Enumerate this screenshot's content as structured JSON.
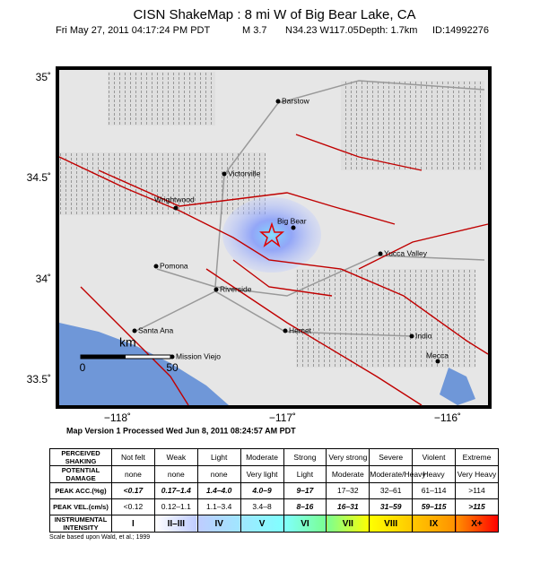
{
  "header": {
    "title": "CISN ShakeMap : 8 mi W of Big Bear Lake, CA",
    "details": [
      "Fri May 27, 2011 04:17:24 PM PDT",
      "M 3.7",
      "N34.23 W117.05",
      "Depth: 1.7km",
      "ID:14992276"
    ]
  },
  "map": {
    "lat_labels": [
      "35˚",
      "34.5˚",
      "34˚",
      "33.5˚"
    ],
    "lon_labels": [
      "−118˚",
      "−117˚",
      "−116˚"
    ],
    "places": [
      "Barstow",
      "Victorville",
      "Wrightwood",
      "Big Bear",
      "Yucca Valley",
      "Pomona",
      "Riverside",
      "Santa Ana",
      "Hemet",
      "Indio",
      "Mission Viejo",
      "Mecca"
    ],
    "scale": {
      "unit": "km",
      "start": "0",
      "end": "50"
    }
  },
  "version": "Map Version 1 Processed Wed Jun  8, 2011 08:24:57 AM PDT",
  "table": {
    "rows": [
      [
        "PERCEIVED SHAKING",
        "Not felt",
        "Weak",
        "Light",
        "Moderate",
        "Strong",
        "Very strong",
        "Severe",
        "Violent",
        "Extreme"
      ],
      [
        "POTENTIAL DAMAGE",
        "none",
        "none",
        "none",
        "Very light",
        "Light",
        "Moderate",
        "Moderate/Heavy",
        "Heavy",
        "Very Heavy"
      ],
      [
        "PEAK ACC.(%g)",
        "<0.17",
        "0.17–1.4",
        "1.4–4.0",
        "4.0–9",
        "9–17",
        "17–32",
        "32–61",
        "61–114",
        ">114"
      ],
      [
        "PEAK VEL.(cm/s)",
        "<0.12",
        "0.12–1.1",
        "1.1–3.4",
        "3.4–8",
        "8–16",
        "16–31",
        "31–59",
        "59–115",
        ">115"
      ],
      [
        "INSTRUMENTAL INTENSITY",
        "I",
        "II–III",
        "IV",
        "V",
        "VI",
        "VII",
        "VIII",
        "IX",
        "X+"
      ]
    ],
    "intensity_colors": [
      "#ffffff",
      "#bfccff",
      "#a0e6ff",
      "#80ffff",
      "#7aff93",
      "#ffff00",
      "#ffc800",
      "#ff9100",
      "#ff0000"
    ]
  },
  "note": "Scale based upon Wald, et al.; 1999"
}
